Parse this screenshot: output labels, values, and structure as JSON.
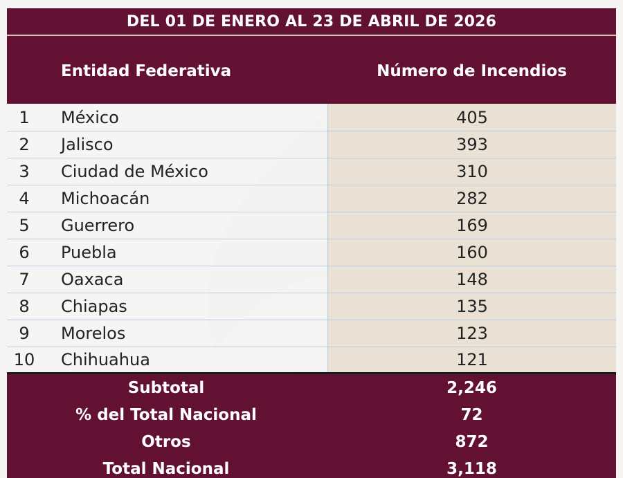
{
  "chart_data": {
    "type": "table",
    "title": "DEL 01 DE ENERO AL 23 DE ABRIL DE 2026",
    "columns": [
      "Entidad Federativa",
      "Número de Incendios"
    ],
    "rows": [
      {
        "rank": "1",
        "entidad": "México",
        "incendios": "405"
      },
      {
        "rank": "2",
        "entidad": "Jalisco",
        "incendios": "393"
      },
      {
        "rank": "3",
        "entidad": "Ciudad de México",
        "incendios": "310"
      },
      {
        "rank": "4",
        "entidad": "Michoacán",
        "incendios": "282"
      },
      {
        "rank": "5",
        "entidad": "Guerrero",
        "incendios": "169"
      },
      {
        "rank": "6",
        "entidad": "Puebla",
        "incendios": "160"
      },
      {
        "rank": "7",
        "entidad": "Oaxaca",
        "incendios": "148"
      },
      {
        "rank": "8",
        "entidad": "Chiapas",
        "incendios": "135"
      },
      {
        "rank": "9",
        "entidad": "Morelos",
        "incendios": "123"
      },
      {
        "rank": "10",
        "entidad": "Chihuahua",
        "incendios": "121"
      }
    ],
    "summary": [
      {
        "label": "Subtotal",
        "value": "2,246"
      },
      {
        "label": "% del Total Nacional",
        "value": "72"
      },
      {
        "label": "Otros",
        "value": "872"
      },
      {
        "label": "Total Nacional",
        "value": "3,118"
      }
    ]
  },
  "colors": {
    "header": "#621132",
    "value_cell": "#e9e1d3",
    "row_line": "#b9cde0"
  }
}
